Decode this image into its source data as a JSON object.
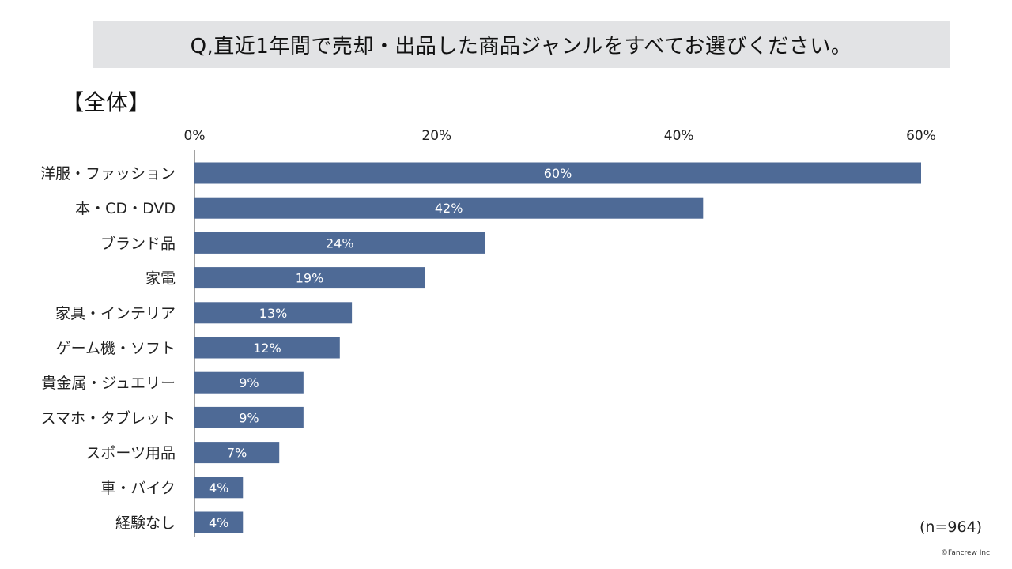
{
  "header": {
    "question": "Q,直近1年間で売却・出品した商品ジャンルをすべてお選びください。",
    "segment": "【全体】"
  },
  "footer": {
    "sample_size": "(n=964)",
    "copyright": "©Fancrew Inc."
  },
  "colors": {
    "bar": "#4e6a96",
    "banner": "#e2e3e5",
    "axis": "#444444"
  },
  "chart_data": {
    "type": "bar",
    "orientation": "horizontal",
    "categories": [
      "洋服・ファッション",
      "本・CD・DVD",
      "ブランド品",
      "家電",
      "家具・インテリア",
      "ゲーム機・ソフト",
      "貴金属・ジュエリー",
      "スマホ・タブレット",
      "スポーツ用品",
      "車・バイク",
      "経験なし"
    ],
    "values": [
      60,
      42,
      24,
      19,
      13,
      12,
      9,
      9,
      7,
      4,
      4
    ],
    "value_labels": [
      "60%",
      "42%",
      "24%",
      "19%",
      "13%",
      "12%",
      "9%",
      "9%",
      "7%",
      "4%",
      "4%"
    ],
    "xlim": [
      0,
      60
    ],
    "xticks": [
      0,
      20,
      40,
      60
    ],
    "xtick_labels": [
      "0%",
      "20%",
      "40%",
      "60%"
    ],
    "xaxis_position": "top",
    "grid": false,
    "legend": "none"
  }
}
